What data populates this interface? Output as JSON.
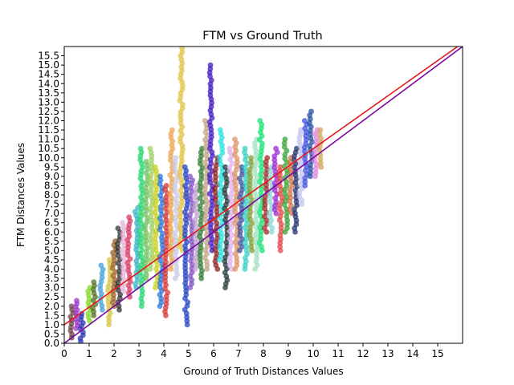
{
  "chart_data": {
    "type": "scatter",
    "title": "FTM vs Ground Truth",
    "xlabel": "Ground of Truth Distances Values",
    "ylabel": "FTM Distances Values",
    "xlim": [
      0,
      16
    ],
    "ylim": [
      0,
      16
    ],
    "xticks": [
      "0",
      "1",
      "2",
      "3",
      "4",
      "5",
      "6",
      "7",
      "8",
      "9",
      "10",
      "11",
      "12",
      "13",
      "14",
      "15"
    ],
    "yticks": [
      "0.0",
      "0.5",
      "1.0",
      "1.5",
      "2.0",
      "2.5",
      "3.0",
      "3.5",
      "4.0",
      "4.5",
      "5.0",
      "5.5",
      "6.0",
      "6.5",
      "7.0",
      "7.5",
      "8.0",
      "8.5",
      "9.0",
      "9.5",
      "10.0",
      "10.5",
      "11.0",
      "11.5",
      "12.0",
      "12.5",
      "13.0",
      "13.5",
      "14.0",
      "14.5",
      "15.0",
      "15.5"
    ],
    "grid": false,
    "lines": [
      {
        "color": "#e31a1c",
        "points": [
          [
            0,
            1.0
          ],
          [
            15.8,
            16.0
          ]
        ]
      },
      {
        "color": "#7b0a9e",
        "points": [
          [
            0,
            0.0
          ],
          [
            16.0,
            16.0
          ]
        ]
      }
    ],
    "scatter_groups": [
      {
        "x": 0.3,
        "y": [
          0.3,
          2.0
        ],
        "color": "#6b3f3f"
      },
      {
        "x": 0.5,
        "y": [
          0.8,
          2.3
        ],
        "color": "#9b2fc8"
      },
      {
        "x": 0.7,
        "y": [
          0.1,
          1.6
        ],
        "color": "#2a2fb0"
      },
      {
        "x": 1.0,
        "y": [
          1.2,
          3.0
        ],
        "color": "#7bd61b"
      },
      {
        "x": 1.2,
        "y": [
          1.5,
          3.3
        ],
        "color": "#4f6b1f"
      },
      {
        "x": 1.5,
        "y": [
          1.8,
          4.2
        ],
        "color": "#3a9bd6"
      },
      {
        "x": 1.8,
        "y": [
          1.0,
          4.5
        ],
        "color": "#d6c23a"
      },
      {
        "x": 2.0,
        "y": [
          2.0,
          5.5
        ],
        "color": "#9a5a20"
      },
      {
        "x": 2.2,
        "y": [
          1.8,
          6.2
        ],
        "color": "#2c2c2c"
      },
      {
        "x": 2.4,
        "y": [
          2.8,
          6.5
        ],
        "color": "#e8b0d8"
      },
      {
        "x": 2.6,
        "y": [
          2.5,
          6.8
        ],
        "color": "#d6305a"
      },
      {
        "x": 2.9,
        "y": [
          3.0,
          7.3
        ],
        "color": "#2fb0c0"
      },
      {
        "x": 3.1,
        "y": [
          2.0,
          10.5
        ],
        "color": "#19d66b"
      },
      {
        "x": 3.3,
        "y": [
          3.5,
          9.8
        ],
        "color": "#6bbf5a"
      },
      {
        "x": 3.5,
        "y": [
          4.0,
          10.5
        ],
        "color": "#9ccf60"
      },
      {
        "x": 3.7,
        "y": [
          3.0,
          9.5
        ],
        "color": "#c8d019"
      },
      {
        "x": 3.9,
        "y": [
          2.0,
          9.0
        ],
        "color": "#1f6fd6"
      },
      {
        "x": 4.1,
        "y": [
          1.5,
          8.5
        ],
        "color": "#d62b2b"
      },
      {
        "x": 4.3,
        "y": [
          4.0,
          11.5
        ],
        "color": "#e9a24c"
      },
      {
        "x": 4.5,
        "y": [
          3.5,
          10.0
        ],
        "color": "#c7c8e6"
      },
      {
        "x": 4.7,
        "y": [
          5.0,
          15.9
        ],
        "color": "#e0c040"
      },
      {
        "x": 4.9,
        "y": [
          1.0,
          9.5
        ],
        "color": "#1a3cc0"
      },
      {
        "x": 5.1,
        "y": [
          3.0,
          9.0
        ],
        "color": "#7a4ac0"
      },
      {
        "x": 5.3,
        "y": [
          4.0,
          8.5
        ],
        "color": "#c0a0d0"
      },
      {
        "x": 5.5,
        "y": [
          3.5,
          10.5
        ],
        "color": "#2a7a2a"
      },
      {
        "x": 5.7,
        "y": [
          4.0,
          12.0
        ],
        "color": "#c0a080"
      },
      {
        "x": 5.9,
        "y": [
          5.0,
          15.0
        ],
        "color": "#3a10c0"
      },
      {
        "x": 6.1,
        "y": [
          4.0,
          10.0
        ],
        "color": "#8a1818"
      },
      {
        "x": 6.3,
        "y": [
          4.5,
          11.5
        ],
        "color": "#20e0e0"
      },
      {
        "x": 6.5,
        "y": [
          3.0,
          9.5
        ],
        "color": "#1a3030"
      },
      {
        "x": 6.7,
        "y": [
          4.0,
          10.5
        ],
        "color": "#e0b0f0"
      },
      {
        "x": 6.9,
        "y": [
          4.0,
          11.0
        ],
        "color": "#d89060"
      },
      {
        "x": 7.1,
        "y": [
          5.0,
          9.5
        ],
        "color": "#3a4a9a"
      },
      {
        "x": 7.3,
        "y": [
          4.0,
          10.5
        ],
        "color": "#30d0c0"
      },
      {
        "x": 7.5,
        "y": [
          5.0,
          10.0
        ],
        "color": "#7a9a2a"
      },
      {
        "x": 7.7,
        "y": [
          4.0,
          11.0
        ],
        "color": "#a0e0c0"
      },
      {
        "x": 7.9,
        "y": [
          5.0,
          12.0
        ],
        "color": "#10e070"
      },
      {
        "x": 8.1,
        "y": [
          6.0,
          10.0
        ],
        "color": "#a02020"
      },
      {
        "x": 8.3,
        "y": [
          6.0,
          9.5
        ],
        "color": "#8ad6d6"
      },
      {
        "x": 8.5,
        "y": [
          7.0,
          10.5
        ],
        "color": "#9a20d0"
      },
      {
        "x": 8.7,
        "y": [
          5.0,
          9.5
        ],
        "color": "#e04040"
      },
      {
        "x": 8.9,
        "y": [
          6.0,
          11.0
        ],
        "color": "#30a030"
      },
      {
        "x": 9.1,
        "y": [
          7.0,
          10.0
        ],
        "color": "#d07040"
      },
      {
        "x": 9.3,
        "y": [
          6.0,
          10.5
        ],
        "color": "#1a2a6a"
      },
      {
        "x": 9.5,
        "y": [
          7.5,
          11.5
        ],
        "color": "#c0c0f0"
      },
      {
        "x": 9.7,
        "y": [
          8.5,
          12.0
        ],
        "color": "#3a4ae0"
      },
      {
        "x": 9.9,
        "y": [
          9.0,
          12.5
        ],
        "color": "#1a4aa0"
      },
      {
        "x": 10.1,
        "y": [
          9.0,
          11.5
        ],
        "color": "#e080e0"
      },
      {
        "x": 10.3,
        "y": [
          9.5,
          11.5
        ],
        "color": "#d0a050"
      }
    ]
  }
}
